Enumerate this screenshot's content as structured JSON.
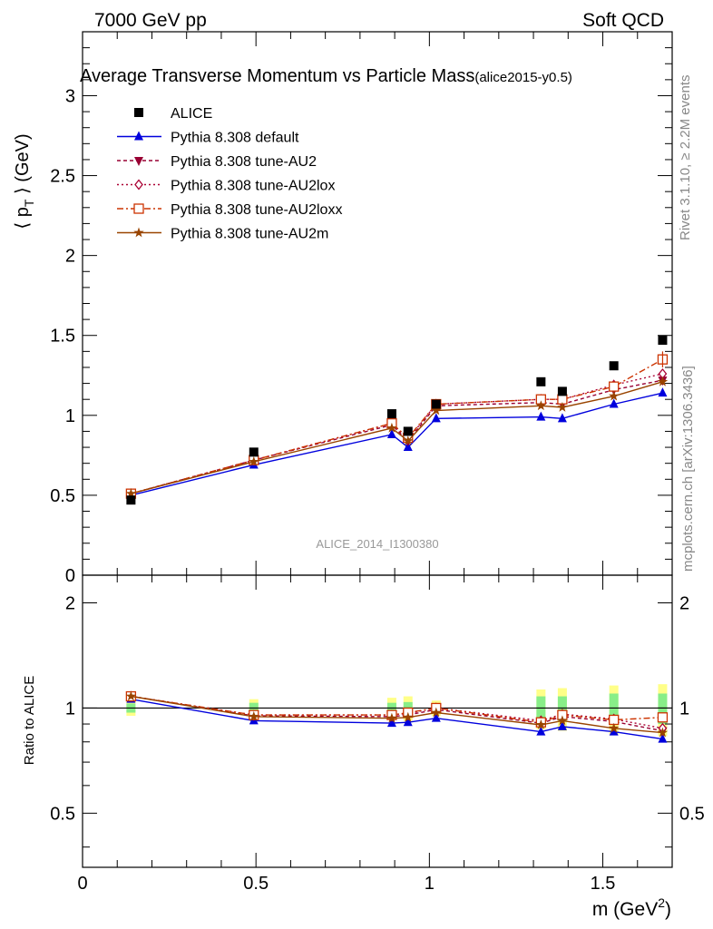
{
  "header": {
    "left": "7000 GeV pp",
    "right": "Soft QCD"
  },
  "chart_data": [
    {
      "type": "line",
      "title": "Average Transverse Momentum vs Particle Mass",
      "title_tag": "(alice2015-y0.5)",
      "ylabel": "⟨ p",
      "ylabel_sub": "T",
      "ylabel_tail": " ⟩ (GeV)",
      "xlim": [
        0,
        1.7
      ],
      "ylim": [
        0,
        3.4
      ],
      "yticks": [
        {
          "v": 0,
          "label": "0"
        },
        {
          "v": 0.5,
          "label": "0.5"
        },
        {
          "v": 1,
          "label": "1"
        },
        {
          "v": 1.5,
          "label": "1.5"
        },
        {
          "v": 2,
          "label": "2"
        },
        {
          "v": 2.5,
          "label": "2.5"
        },
        {
          "v": 3,
          "label": "3"
        }
      ],
      "x": [
        0.1396,
        0.4937,
        0.8917,
        0.9383,
        1.0195,
        1.3217,
        1.3833,
        1.5318,
        1.6724
      ],
      "data": {
        "name": "ALICE",
        "values": [
          0.47,
          0.77,
          1.01,
          0.9,
          1.07,
          1.21,
          1.15,
          1.31,
          1.47
        ]
      },
      "series": [
        {
          "name": "Pythia 8.308 default",
          "color": "#0000dd",
          "marker": "triangle-up",
          "dash": "",
          "values": [
            0.5,
            0.69,
            0.88,
            0.8,
            0.98,
            0.99,
            0.98,
            1.07,
            1.14
          ]
        },
        {
          "name": "Pythia 8.308 tune-AU2",
          "color": "#990033",
          "marker": "triangle-down",
          "dash": "4,3",
          "values": [
            0.51,
            0.72,
            0.94,
            0.84,
            1.06,
            1.08,
            1.07,
            1.16,
            1.22
          ]
        },
        {
          "name": "Pythia 8.308 tune-AU2lox",
          "color": "#aa0033",
          "marker": "diamond-open",
          "dash": "2,3",
          "values": [
            0.51,
            0.72,
            0.95,
            0.85,
            1.07,
            1.1,
            1.1,
            1.19,
            1.26
          ]
        },
        {
          "name": "Pythia 8.308 tune-AU2loxx",
          "color": "#cc3300",
          "marker": "square-open",
          "dash": "7,3,2,3",
          "values": [
            0.51,
            0.72,
            0.95,
            0.86,
            1.07,
            1.1,
            1.1,
            1.18,
            1.35
          ]
        },
        {
          "name": "Pythia 8.308 tune-AU2m",
          "color": "#994400",
          "marker": "star",
          "dash": "",
          "values": [
            0.51,
            0.71,
            0.92,
            0.84,
            1.03,
            1.06,
            1.05,
            1.12,
            1.21
          ]
        }
      ],
      "watermark": "ALICE_2014_I1300380"
    },
    {
      "type": "line",
      "ylabel": "Ratio to ALICE",
      "xlabel": "m (GeV",
      "xlabel_sup": "2",
      "xlabel_tail": ")",
      "xlim": [
        0,
        1.7
      ],
      "ylim": [
        0.35,
        2.4
      ],
      "log_y": true,
      "yticks": [
        {
          "v": 0.5,
          "label": "0.5"
        },
        {
          "v": 1,
          "label": "1"
        },
        {
          "v": 2,
          "label": "2"
        }
      ],
      "xticks": [
        {
          "v": 0,
          "label": "0"
        },
        {
          "v": 0.5,
          "label": "0.5"
        },
        {
          "v": 1,
          "label": "1"
        },
        {
          "v": 1.5,
          "label": "1.5"
        }
      ],
      "stat_band": [
        0.03,
        0.035,
        0.035,
        0.04,
        0.03,
        0.08,
        0.08,
        0.1,
        0.1
      ],
      "total_band": [
        0.05,
        0.06,
        0.07,
        0.08,
        0.05,
        0.13,
        0.14,
        0.16,
        0.17
      ],
      "series": [
        {
          "name": "Pythia 8.308 default",
          "values": [
            1.06,
            0.92,
            0.905,
            0.91,
            0.935,
            0.855,
            0.885,
            0.855,
            0.815
          ]
        },
        {
          "name": "Pythia 8.308 tune-AU2",
          "values": [
            1.08,
            0.95,
            0.945,
            0.955,
            0.99,
            0.905,
            0.945,
            0.915,
            0.86
          ]
        },
        {
          "name": "Pythia 8.308 tune-AU2lox",
          "values": [
            1.08,
            0.955,
            0.955,
            0.965,
            1.0,
            0.92,
            0.96,
            0.93,
            0.875
          ]
        },
        {
          "name": "Pythia 8.308 tune-AU2loxx",
          "values": [
            1.08,
            0.955,
            0.955,
            0.97,
            1.0,
            0.91,
            0.955,
            0.925,
            0.94
          ]
        },
        {
          "name": "Pythia 8.308 tune-AU2m",
          "values": [
            1.08,
            0.945,
            0.935,
            0.94,
            0.97,
            0.895,
            0.92,
            0.875,
            0.85
          ]
        }
      ]
    }
  ],
  "side_text": {
    "rivet": "Rivet 3.1.10, ≥ 2.2M events",
    "mcplots": "mcplots.cern.ch [arXiv:1306.3436]"
  }
}
